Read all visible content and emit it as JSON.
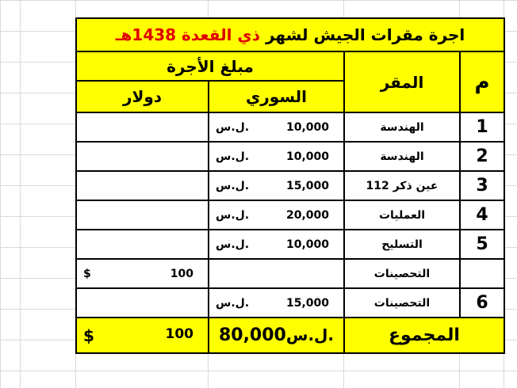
{
  "title": {
    "prefix": "اجرة مقرات الجيش لشهر",
    "month": "ذي القعدة",
    "year": "1438هـ"
  },
  "headers": {
    "num": "م",
    "place": "المقر",
    "amount": "مبلغ الأجرة",
    "syrian": "السوري",
    "dollar": "دولار"
  },
  "rows": [
    {
      "num": "1",
      "place": "الهندسة",
      "syp": "10,000",
      "syp_unit": "ل.س.",
      "usd": "",
      "usd_unit": ""
    },
    {
      "num": "2",
      "place": "الهندسة",
      "syp": "10,000",
      "syp_unit": "ل.س.",
      "usd": "",
      "usd_unit": ""
    },
    {
      "num": "3",
      "place": "عين ذكر 112",
      "syp": "15,000",
      "syp_unit": "ل.س.",
      "usd": "",
      "usd_unit": ""
    },
    {
      "num": "4",
      "place": "العمليات",
      "syp": "20,000",
      "syp_unit": "ل.س.",
      "usd": "",
      "usd_unit": ""
    },
    {
      "num": "5",
      "place": "التسليح",
      "syp": "10,000",
      "syp_unit": "ل.س.",
      "usd": "",
      "usd_unit": ""
    },
    {
      "num": "",
      "place": "التحصينات",
      "syp": "",
      "syp_unit": "",
      "usd": "100",
      "usd_unit": "$"
    },
    {
      "num": "6",
      "place": "التحصينات",
      "syp": "15,000",
      "syp_unit": "ل.س.",
      "usd": "",
      "usd_unit": ""
    }
  ],
  "total": {
    "label": "المجموع",
    "syp": "80,000",
    "syp_unit": "ل.س.",
    "usd": "100",
    "usd_unit": "$"
  },
  "colors": {
    "header_bg": "#ffff00",
    "accent_text": "#e00000"
  }
}
